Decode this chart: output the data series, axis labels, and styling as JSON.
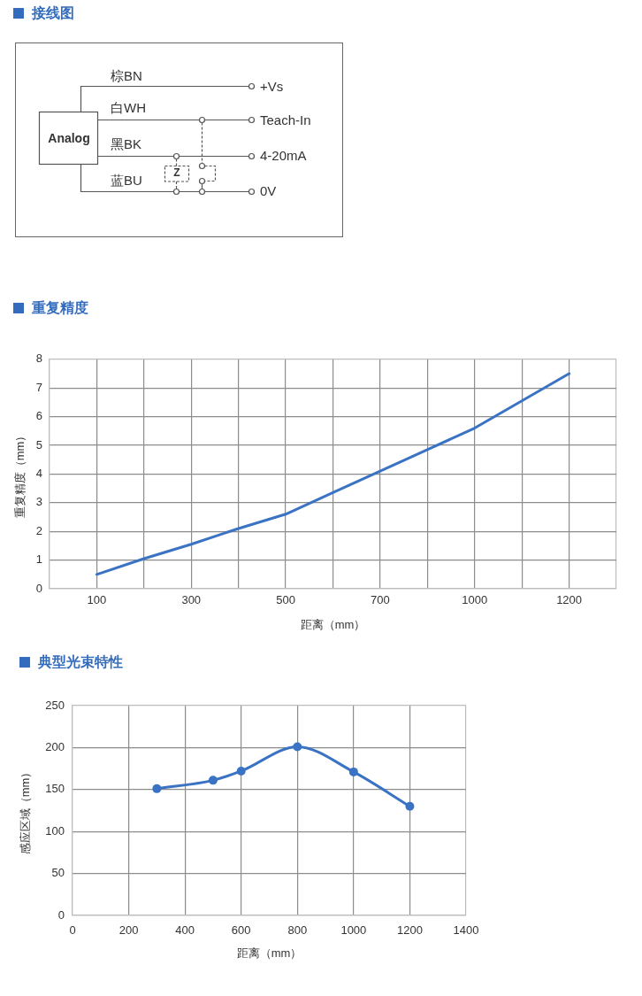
{
  "chart_data": [
    {
      "type": "other",
      "title": "接线图",
      "annotations": [
        "棕BN",
        "白WH",
        "黑BK",
        "蓝BU",
        "+Vs",
        "Teach-In",
        "4-20mA",
        "0V",
        "Analog",
        "Z"
      ]
    },
    {
      "type": "line",
      "title": "重复精度",
      "xlabel": "距离（mm）",
      "ylabel": "重复精度（mm）",
      "categories": [
        null,
        "100",
        null,
        "300",
        null,
        "500",
        null,
        "700",
        null,
        "1000",
        null,
        "1200",
        null
      ],
      "values": [
        null,
        0.5,
        1.05,
        1.55,
        2.1,
        2.6,
        3.35,
        4.1,
        4.85,
        5.6,
        6.55,
        7.5,
        null
      ],
      "color": "#3a72c4",
      "ylim": [
        0,
        8
      ],
      "yticks": [
        0,
        1,
        2,
        3,
        4,
        5,
        6,
        7,
        8
      ],
      "grid": true,
      "marker": "none"
    },
    {
      "type": "line",
      "title": "典型光束特性",
      "xlabel": "距离（mm）",
      "ylabel": "感应区域（mm）",
      "x": [
        300,
        500,
        600,
        800,
        1000,
        1200
      ],
      "values": [
        151,
        161,
        172,
        201,
        171,
        130
      ],
      "color": "#3a72c4",
      "xlim": [
        0,
        1400
      ],
      "xticks": [
        0,
        200,
        400,
        600,
        800,
        1000,
        1200,
        1400
      ],
      "ylim": [
        0,
        250
      ],
      "yticks": [
        0,
        50,
        100,
        150,
        200,
        250
      ],
      "grid": true,
      "marker": "circle"
    }
  ]
}
